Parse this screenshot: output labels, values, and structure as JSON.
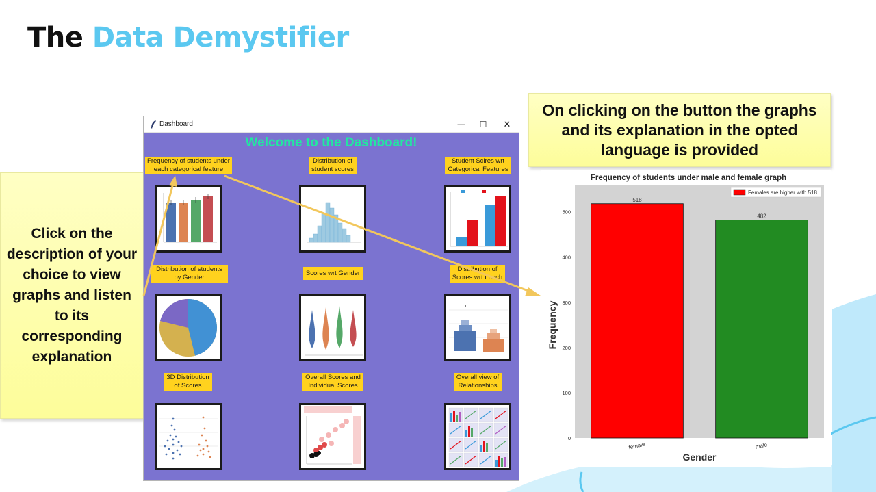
{
  "slide": {
    "title_part1": "The",
    "title_part2": "Data Demystifier",
    "left_note": "Click on the description of your choice to view graphs and listen to its corresponding explanation",
    "right_note": "On clicking on the button the graphs and its explanation in the opted language is provided"
  },
  "window": {
    "title": "Dashboard",
    "controls": {
      "minimize": "—",
      "maximize": "☐",
      "close": "✕"
    },
    "welcome": "Welcome to the Dashboard!",
    "buttons": [
      {
        "label": "Frequency of students under each categorical feature",
        "icon": "bar-chart-thumbnail"
      },
      {
        "label": "Distribution of student scores",
        "icon": "histogram-thumbnail"
      },
      {
        "label": "Student Scires wrt Categorical Features",
        "icon": "grouped-bar-thumbnail"
      },
      {
        "label": "Distribution of students by Gender",
        "icon": "pie-chart-thumbnail"
      },
      {
        "label": "Scores wrt Gender",
        "icon": "violin-plot-thumbnail"
      },
      {
        "label": "Distribution of Scores wrt Lunch",
        "icon": "boxen-plot-thumbnail"
      },
      {
        "label": "3D Distribution of Scores",
        "icon": "swarm-plot-thumbnail"
      },
      {
        "label": "Overall Scores and Individual Scores",
        "icon": "hexbin-plot-thumbnail"
      },
      {
        "label": "Overall view of Relationships",
        "icon": "pair-plot-thumbnail"
      }
    ]
  },
  "chart_data": {
    "type": "bar",
    "title": "Frequency of students under male and female graph",
    "categories": [
      "female",
      "male"
    ],
    "values": [
      518,
      482
    ],
    "data_labels": [
      "518",
      "482"
    ],
    "colors": [
      "#ff0000",
      "#228b22"
    ],
    "xlabel": "Gender",
    "ylabel": "Frequency",
    "ylim": [
      0,
      560
    ],
    "yticks": [
      0,
      100,
      200,
      300,
      400,
      500
    ],
    "legend": {
      "label": "Females are higher with 518",
      "color": "#ff0000",
      "placement": "top-right"
    },
    "background": "#d3d3d3",
    "grid": false
  },
  "colors": {
    "title_accent": "#5bc8f0",
    "window_background": "#7b73d0",
    "button_yellow": "#ffd21e",
    "welcome_text": "#22e8a0",
    "note_yellow": "#fdfd9a"
  }
}
